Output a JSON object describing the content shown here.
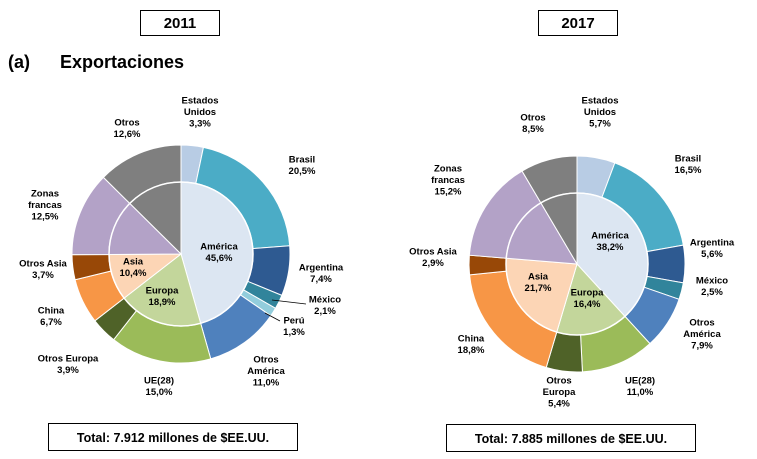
{
  "section": {
    "letter": "(a)",
    "title": "Exportaciones"
  },
  "chart_data": [
    {
      "type": "pie",
      "year": "2011",
      "total": "Total: 7.912 millones de $EE.UU.",
      "outer": [
        {
          "label": [
            "Estados",
            "Unidos",
            "3,3%"
          ],
          "value": 3.3,
          "color": "#b8cce4"
        },
        {
          "label": [
            "Brasil",
            "20,5%"
          ],
          "value": 20.5,
          "color": "#4bacc6"
        },
        {
          "label": [
            "Argentina",
            "7,4%"
          ],
          "value": 7.4,
          "color": "#2e5a91"
        },
        {
          "label": [
            "México",
            "2,1%"
          ],
          "value": 2.1,
          "color": "#31849b"
        },
        {
          "label": [
            "Perú",
            "1,3%"
          ],
          "value": 1.3,
          "color": "#92cddc"
        },
        {
          "label": [
            "Otros",
            "América",
            "11,0%"
          ],
          "value": 11.0,
          "color": "#4f81bd"
        },
        {
          "label": [
            "UE(28)",
            "15,0%"
          ],
          "value": 15.0,
          "color": "#9bbb59"
        },
        {
          "label": [
            "Otros Europa",
            "3,9%"
          ],
          "value": 3.9,
          "color": "#4f6228"
        },
        {
          "label": [
            "China",
            "6,7%"
          ],
          "value": 6.7,
          "color": "#f79646"
        },
        {
          "label": [
            "Otros Asia",
            "3,7%"
          ],
          "value": 3.7,
          "color": "#984807"
        },
        {
          "label": [
            "Zonas",
            "francas",
            "12,5%"
          ],
          "value": 12.5,
          "color": "#b3a2c7"
        },
        {
          "label": [
            "Otros",
            "12,6%"
          ],
          "value": 12.6,
          "color": "#7f7f7f"
        }
      ],
      "inner": [
        {
          "label": [
            "América",
            "45,6%"
          ],
          "value": 45.6,
          "color": "#dce6f2"
        },
        {
          "label": [
            "Europa",
            "18,9%"
          ],
          "value": 18.9,
          "color": "#c3d69b"
        },
        {
          "label": [
            "Asia",
            "10,4%"
          ],
          "value": 10.4,
          "color": "#fcd5b5"
        },
        {
          "label": [],
          "value": 12.5,
          "color": "#b3a2c7"
        },
        {
          "label": [],
          "value": 12.6,
          "color": "#7f7f7f"
        }
      ]
    },
    {
      "type": "pie",
      "year": "2017",
      "total": "Total: 7.885 millones de $EE.UU.",
      "outer": [
        {
          "label": [
            "Estados",
            "Unidos",
            "5,7%"
          ],
          "value": 5.7,
          "color": "#b8cce4"
        },
        {
          "label": [
            "Brasil",
            "16,5%"
          ],
          "value": 16.5,
          "color": "#4bacc6"
        },
        {
          "label": [
            "Argentina",
            "5,6%"
          ],
          "value": 5.6,
          "color": "#2e5a91"
        },
        {
          "label": [
            "México",
            "2,5%"
          ],
          "value": 2.5,
          "color": "#31849b"
        },
        {
          "label": [
            "Otros",
            "América",
            "7,9%"
          ],
          "value": 7.9,
          "color": "#4f81bd"
        },
        {
          "label": [
            "UE(28)",
            "11,0%"
          ],
          "value": 11.0,
          "color": "#9bbb59"
        },
        {
          "label": [
            "Otros",
            "Europa",
            "5,4%"
          ],
          "value": 5.4,
          "color": "#4f6228"
        },
        {
          "label": [
            "China",
            "18,8%"
          ],
          "value": 18.8,
          "color": "#f79646"
        },
        {
          "label": [
            "Otros Asia",
            "2,9%"
          ],
          "value": 2.9,
          "color": "#984807"
        },
        {
          "label": [
            "Zonas",
            "francas",
            "15,2%"
          ],
          "value": 15.2,
          "color": "#b3a2c7"
        },
        {
          "label": [
            "Otros",
            "8,5%"
          ],
          "value": 8.5,
          "color": "#7f7f7f"
        }
      ],
      "inner": [
        {
          "label": [
            "América",
            "38,2%"
          ],
          "value": 38.2,
          "color": "#dce6f2"
        },
        {
          "label": [
            "Europa",
            "16,4%"
          ],
          "value": 16.4,
          "color": "#c3d69b"
        },
        {
          "label": [
            "Asia",
            "21,7%"
          ],
          "value": 21.7,
          "color": "#fcd5b5"
        },
        {
          "label": [],
          "value": 15.2,
          "color": "#b3a2c7"
        },
        {
          "label": [],
          "value": 8.5,
          "color": "#7f7f7f"
        }
      ]
    }
  ]
}
